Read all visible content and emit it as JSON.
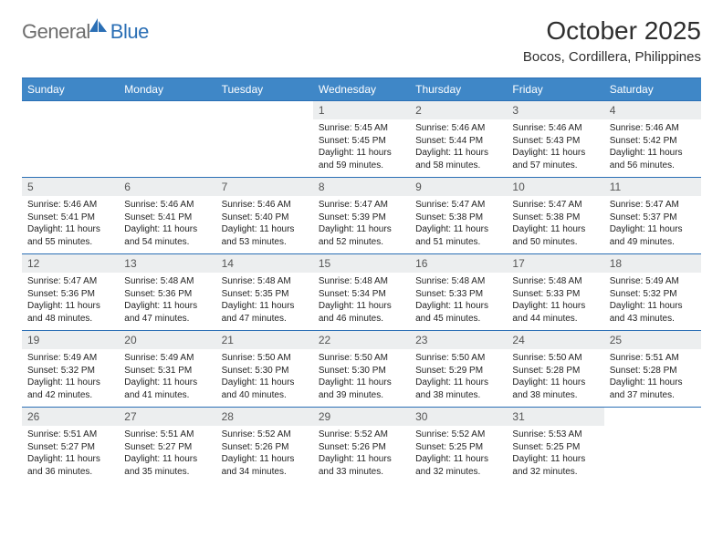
{
  "logo": {
    "text1": "General",
    "text2": "Blue"
  },
  "title": "October 2025",
  "location": "Bocos, Cordillera, Philippines",
  "colors": {
    "header_bg": "#3f87c7",
    "border": "#2b6fb5",
    "daynum_bg": "#eceeef",
    "logo_gray": "#6d6d6d",
    "logo_blue": "#2b6fb5"
  },
  "day_names": [
    "Sunday",
    "Monday",
    "Tuesday",
    "Wednesday",
    "Thursday",
    "Friday",
    "Saturday"
  ],
  "weeks": [
    [
      {
        "n": "",
        "lines": [],
        "empty": true
      },
      {
        "n": "",
        "lines": [],
        "empty": true
      },
      {
        "n": "",
        "lines": [],
        "empty": true
      },
      {
        "n": "1",
        "lines": [
          "Sunrise: 5:45 AM",
          "Sunset: 5:45 PM",
          "Daylight: 11 hours and 59 minutes."
        ]
      },
      {
        "n": "2",
        "lines": [
          "Sunrise: 5:46 AM",
          "Sunset: 5:44 PM",
          "Daylight: 11 hours and 58 minutes."
        ]
      },
      {
        "n": "3",
        "lines": [
          "Sunrise: 5:46 AM",
          "Sunset: 5:43 PM",
          "Daylight: 11 hours and 57 minutes."
        ]
      },
      {
        "n": "4",
        "lines": [
          "Sunrise: 5:46 AM",
          "Sunset: 5:42 PM",
          "Daylight: 11 hours and 56 minutes."
        ]
      }
    ],
    [
      {
        "n": "5",
        "lines": [
          "Sunrise: 5:46 AM",
          "Sunset: 5:41 PM",
          "Daylight: 11 hours and 55 minutes."
        ]
      },
      {
        "n": "6",
        "lines": [
          "Sunrise: 5:46 AM",
          "Sunset: 5:41 PM",
          "Daylight: 11 hours and 54 minutes."
        ]
      },
      {
        "n": "7",
        "lines": [
          "Sunrise: 5:46 AM",
          "Sunset: 5:40 PM",
          "Daylight: 11 hours and 53 minutes."
        ]
      },
      {
        "n": "8",
        "lines": [
          "Sunrise: 5:47 AM",
          "Sunset: 5:39 PM",
          "Daylight: 11 hours and 52 minutes."
        ]
      },
      {
        "n": "9",
        "lines": [
          "Sunrise: 5:47 AM",
          "Sunset: 5:38 PM",
          "Daylight: 11 hours and 51 minutes."
        ]
      },
      {
        "n": "10",
        "lines": [
          "Sunrise: 5:47 AM",
          "Sunset: 5:38 PM",
          "Daylight: 11 hours and 50 minutes."
        ]
      },
      {
        "n": "11",
        "lines": [
          "Sunrise: 5:47 AM",
          "Sunset: 5:37 PM",
          "Daylight: 11 hours and 49 minutes."
        ]
      }
    ],
    [
      {
        "n": "12",
        "lines": [
          "Sunrise: 5:47 AM",
          "Sunset: 5:36 PM",
          "Daylight: 11 hours and 48 minutes."
        ]
      },
      {
        "n": "13",
        "lines": [
          "Sunrise: 5:48 AM",
          "Sunset: 5:36 PM",
          "Daylight: 11 hours and 47 minutes."
        ]
      },
      {
        "n": "14",
        "lines": [
          "Sunrise: 5:48 AM",
          "Sunset: 5:35 PM",
          "Daylight: 11 hours and 47 minutes."
        ]
      },
      {
        "n": "15",
        "lines": [
          "Sunrise: 5:48 AM",
          "Sunset: 5:34 PM",
          "Daylight: 11 hours and 46 minutes."
        ]
      },
      {
        "n": "16",
        "lines": [
          "Sunrise: 5:48 AM",
          "Sunset: 5:33 PM",
          "Daylight: 11 hours and 45 minutes."
        ]
      },
      {
        "n": "17",
        "lines": [
          "Sunrise: 5:48 AM",
          "Sunset: 5:33 PM",
          "Daylight: 11 hours and 44 minutes."
        ]
      },
      {
        "n": "18",
        "lines": [
          "Sunrise: 5:49 AM",
          "Sunset: 5:32 PM",
          "Daylight: 11 hours and 43 minutes."
        ]
      }
    ],
    [
      {
        "n": "19",
        "lines": [
          "Sunrise: 5:49 AM",
          "Sunset: 5:32 PM",
          "Daylight: 11 hours and 42 minutes."
        ]
      },
      {
        "n": "20",
        "lines": [
          "Sunrise: 5:49 AM",
          "Sunset: 5:31 PM",
          "Daylight: 11 hours and 41 minutes."
        ]
      },
      {
        "n": "21",
        "lines": [
          "Sunrise: 5:50 AM",
          "Sunset: 5:30 PM",
          "Daylight: 11 hours and 40 minutes."
        ]
      },
      {
        "n": "22",
        "lines": [
          "Sunrise: 5:50 AM",
          "Sunset: 5:30 PM",
          "Daylight: 11 hours and 39 minutes."
        ]
      },
      {
        "n": "23",
        "lines": [
          "Sunrise: 5:50 AM",
          "Sunset: 5:29 PM",
          "Daylight: 11 hours and 38 minutes."
        ]
      },
      {
        "n": "24",
        "lines": [
          "Sunrise: 5:50 AM",
          "Sunset: 5:28 PM",
          "Daylight: 11 hours and 38 minutes."
        ]
      },
      {
        "n": "25",
        "lines": [
          "Sunrise: 5:51 AM",
          "Sunset: 5:28 PM",
          "Daylight: 11 hours and 37 minutes."
        ]
      }
    ],
    [
      {
        "n": "26",
        "lines": [
          "Sunrise: 5:51 AM",
          "Sunset: 5:27 PM",
          "Daylight: 11 hours and 36 minutes."
        ]
      },
      {
        "n": "27",
        "lines": [
          "Sunrise: 5:51 AM",
          "Sunset: 5:27 PM",
          "Daylight: 11 hours and 35 minutes."
        ]
      },
      {
        "n": "28",
        "lines": [
          "Sunrise: 5:52 AM",
          "Sunset: 5:26 PM",
          "Daylight: 11 hours and 34 minutes."
        ]
      },
      {
        "n": "29",
        "lines": [
          "Sunrise: 5:52 AM",
          "Sunset: 5:26 PM",
          "Daylight: 11 hours and 33 minutes."
        ]
      },
      {
        "n": "30",
        "lines": [
          "Sunrise: 5:52 AM",
          "Sunset: 5:25 PM",
          "Daylight: 11 hours and 32 minutes."
        ]
      },
      {
        "n": "31",
        "lines": [
          "Sunrise: 5:53 AM",
          "Sunset: 5:25 PM",
          "Daylight: 11 hours and 32 minutes."
        ]
      },
      {
        "n": "",
        "lines": [],
        "empty": true
      }
    ]
  ]
}
